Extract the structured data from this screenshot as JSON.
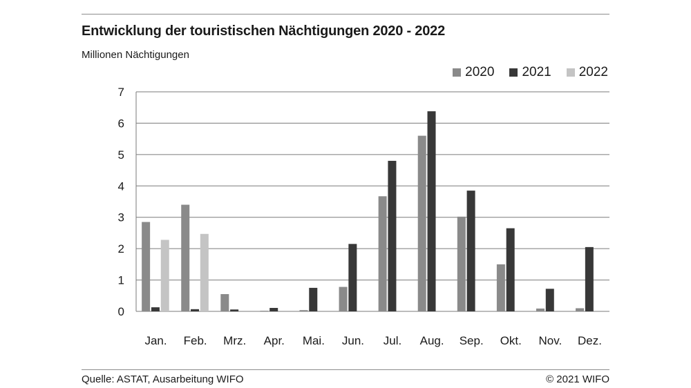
{
  "title": "Entwicklung der touristischen Nächtigungen 2020 - 2022",
  "unit_label": "Millionen Nächtigungen",
  "source": "Quelle: ASTAT, Ausarbeitung WIFO",
  "copyright": "© 2021 WIFO",
  "colors": {
    "2020": "#8a8a8a",
    "2021": "#383838",
    "2022": "#c4c4c4"
  },
  "chart_data": {
    "type": "bar",
    "categories": [
      "Jan.",
      "Feb.",
      "Mrz.",
      "Apr.",
      "Mai.",
      "Jun.",
      "Jul.",
      "Aug.",
      "Sep.",
      "Okt.",
      "Nov.",
      "Dez."
    ],
    "series": [
      {
        "name": "2020",
        "values": [
          2.85,
          3.4,
          0.55,
          0.02,
          0.04,
          0.78,
          3.67,
          5.6,
          3.02,
          1.5,
          0.09,
          0.1
        ]
      },
      {
        "name": "2021",
        "values": [
          0.13,
          0.07,
          0.06,
          0.11,
          0.75,
          2.15,
          4.8,
          6.38,
          3.85,
          2.65,
          0.72,
          2.05
        ]
      },
      {
        "name": "2022",
        "values": [
          2.28,
          2.47,
          null,
          null,
          null,
          null,
          null,
          null,
          null,
          null,
          null,
          null
        ]
      }
    ],
    "ylim": [
      0,
      7
    ],
    "yticks": [
      0,
      1,
      2,
      3,
      4,
      5,
      6,
      7
    ],
    "grid": true,
    "legend_position": "top-right"
  }
}
